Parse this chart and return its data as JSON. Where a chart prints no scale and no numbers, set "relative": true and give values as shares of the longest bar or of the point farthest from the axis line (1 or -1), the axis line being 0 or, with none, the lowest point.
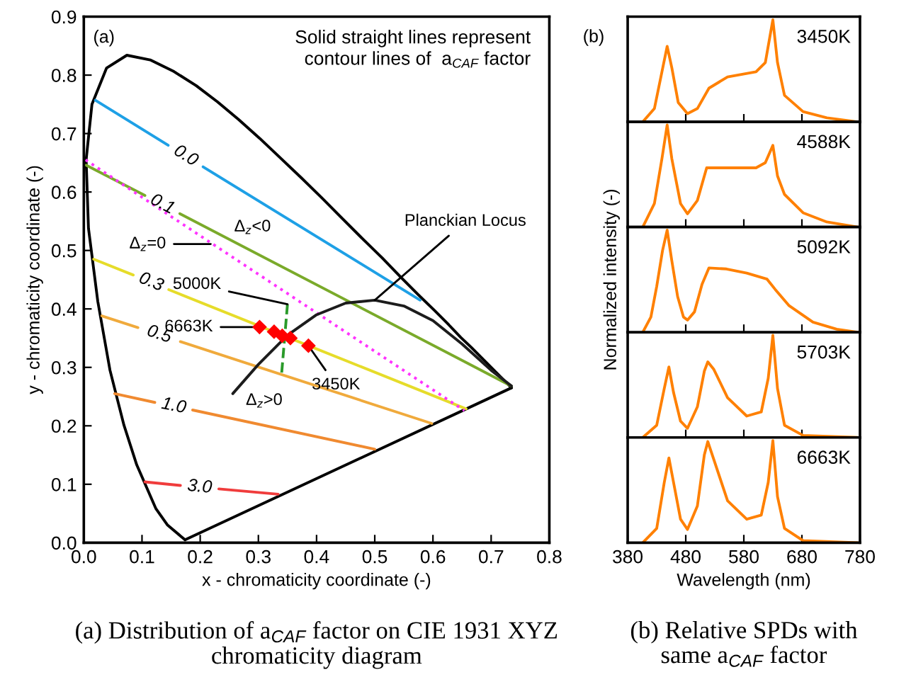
{
  "chart_data": [
    {
      "type": "line",
      "xlabel": "x - chromaticity coordinate (-)",
      "ylabel": "y - chromaticity coordinate (-)",
      "xlim": [
        0,
        0.8
      ],
      "ylim": [
        0,
        0.9
      ],
      "xticks": [
        {
          "value": 0,
          "label": "0.0"
        },
        0.1,
        0.2,
        0.3,
        0.4,
        0.5,
        0.6,
        0.7,
        0.8
      ],
      "yticks": [
        {
          "value": 0,
          "label": "0.0"
        },
        0.1,
        0.2,
        0.3,
        0.4,
        0.5,
        0.6,
        0.7,
        0.8,
        0.9
      ],
      "grid": false,
      "legend": false,
      "series": [
        {
          "color": "#000000",
          "x": [
            0.174,
            0.144,
            0.124,
            0.091,
            0.069,
            0.045,
            0.024,
            0.008,
            0.004,
            0.014,
            0.039,
            0.074,
            0.114,
            0.155,
            0.193,
            0.23,
            0.266,
            0.302,
            0.337,
            0.373,
            0.409,
            0.444,
            0.479,
            0.513,
            0.545,
            0.575,
            0.603,
            0.627,
            0.648,
            0.666,
            0.692,
            0.708,
            0.735
          ],
          "values": [
            0.005,
            0.03,
            0.058,
            0.133,
            0.201,
            0.295,
            0.413,
            0.538,
            0.655,
            0.75,
            0.812,
            0.834,
            0.826,
            0.806,
            0.782,
            0.754,
            0.724,
            0.692,
            0.659,
            0.625,
            0.59,
            0.555,
            0.52,
            0.487,
            0.454,
            0.424,
            0.397,
            0.373,
            0.351,
            0.334,
            0.308,
            0.292,
            0.265
          ]
        },
        {
          "color": "#000000",
          "x": [
            0.174,
            0.735
          ],
          "values": [
            0.005,
            0.265
          ]
        },
        {
          "name": "0.0",
          "color": "#1ea0e6",
          "x": [
            0.02,
            0.145,
            0.175,
            0.205,
            0.578
          ],
          "values": [
            0.757,
            0.68,
            null,
            0.643,
            0.415
          ]
        },
        {
          "name": "0.1",
          "color": "#7aaa2a",
          "x": [
            0.004,
            0.105,
            0.135,
            0.165,
            0.735
          ],
          "values": [
            0.646,
            0.594,
            null,
            0.563,
            0.268
          ]
        },
        {
          "name": "0.3",
          "color": "#e6dc2a",
          "x": [
            0.017,
            0.085,
            0.115,
            0.146,
            0.657
          ],
          "values": [
            0.485,
            0.458,
            null,
            0.433,
            0.229
          ]
        },
        {
          "name": "0.5",
          "color": "#f0aa3c",
          "x": [
            0.031,
            0.093,
            0.13,
            0.166,
            0.598
          ],
          "values": [
            0.388,
            0.368,
            null,
            0.344,
            0.204
          ]
        },
        {
          "name": "1.0",
          "color": "#f08a30",
          "x": [
            0.053,
            0.122,
            0.155,
            0.187,
            0.5
          ],
          "values": [
            0.255,
            0.24,
            null,
            0.227,
            0.16
          ]
        },
        {
          "name": "3.0",
          "color": "#f03c3c",
          "x": [
            0.105,
            0.166,
            0.2,
            0.232,
            0.334
          ],
          "values": [
            0.104,
            0.098,
            null,
            0.092,
            0.083
          ]
        },
        {
          "color": "#ff33ff",
          "line_style": "dotted",
          "x": [
            0.003,
            0.654
          ],
          "values": [
            0.655,
            0.226
          ]
        },
        {
          "color": "#1c1c1c",
          "x": [
            0.256,
            0.3,
            0.35,
            0.4,
            0.45,
            0.5,
            0.55,
            0.6,
            0.65,
            0.7,
            0.735
          ],
          "values": [
            0.255,
            0.305,
            0.355,
            0.39,
            0.41,
            0.415,
            0.405,
            0.38,
            0.34,
            0.295,
            0.268
          ]
        },
        {
          "color": "#2a9a2a",
          "line_style": "dashed",
          "x": [
            0.35,
            0.34
          ],
          "values": [
            0.408,
            0.29
          ]
        },
        {
          "type": "scatter",
          "marker": "diamond",
          "color": "#ff0000",
          "x": [
            0.302,
            0.327,
            0.341,
            0.355,
            0.386
          ],
          "values": [
            0.369,
            0.361,
            0.354,
            0.35,
            0.337
          ]
        }
      ],
      "annotations": [
        "(a)",
        "Solid straight lines represent\ncontour lines of  a$_{CAF}$ factor",
        "Δ$_{z}$<0",
        {
          "text": "Δ$_{z}$=0",
          "x": 0.218,
          "y": 0.511
        },
        "Δ$_{z}$>0",
        {
          "text": "5000K",
          "x": 0.35,
          "y": 0.408
        },
        {
          "text": "6663K",
          "x": 0.302,
          "y": 0.369
        },
        {
          "text": "3450K",
          "x": 0.386,
          "y": 0.337
        },
        {
          "text": "Planckian Locus",
          "x": 0.5,
          "y": 0.415
        },
        "(a) Distribution of a$_{CAF}$ factor on CIE 1931 XYZ\nchromaticity diagram"
      ]
    },
    {
      "type": "line",
      "relative": true,
      "xlim": [
        380,
        780
      ],
      "xticks": [
        380,
        480,
        580,
        680,
        780
      ],
      "tick_labels": false,
      "grid": false,
      "legend": false,
      "series": [
        {
          "name": "3450K",
          "color": "#ff8000",
          "x": [
            406,
            426,
            439,
            448,
            456,
            467,
            483,
            500,
            520,
            552,
            601,
            617,
            630,
            638,
            650,
            682,
            723,
            776
          ],
          "values": [
            0,
            0.13,
            0.49,
            0.74,
            0.53,
            0.19,
            0.08,
            0.13,
            0.33,
            0.44,
            0.49,
            0.58,
            1,
            0.58,
            0.26,
            0.1,
            0.04,
            0
          ]
        }
      ],
      "annotations": [
        "(b)",
        "(b) Relative SPDs with\nsame a$_{CAF}$ factor"
      ]
    },
    {
      "type": "line",
      "relative": true,
      "xlim": [
        380,
        780
      ],
      "xticks": [
        380,
        480,
        580,
        680,
        780
      ],
      "tick_labels": false,
      "grid": false,
      "legend": false,
      "series": [
        {
          "name": "4588K",
          "color": "#ff8000",
          "x": [
            406,
            426,
            439,
            448,
            456,
            471,
            483,
            500,
            516,
            544,
            601,
            617,
            630,
            638,
            650,
            682,
            723,
            776
          ],
          "values": [
            0,
            0.23,
            0.67,
            1,
            0.67,
            0.23,
            0.13,
            0.26,
            0.58,
            0.58,
            0.58,
            0.63,
            0.8,
            0.5,
            0.32,
            0.14,
            0.05,
            0
          ]
        }
      ]
    },
    {
      "type": "line",
      "relative": true,
      "xlim": [
        380,
        780
      ],
      "xticks": [
        380,
        480,
        580,
        680,
        780
      ],
      "tick_labels": false,
      "grid": false,
      "legend": false,
      "ylabel": "Normalized intensity (-)",
      "series": [
        {
          "name": "5092K",
          "color": "#ff8000",
          "x": [
            406,
            420,
            430,
            440,
            448,
            456,
            466,
            476,
            483,
            495,
            508,
            520,
            550,
            585,
            620,
            634,
            658,
            699,
            740,
            776
          ],
          "values": [
            0,
            0.15,
            0.45,
            0.8,
            1,
            0.7,
            0.35,
            0.15,
            0.12,
            0.2,
            0.47,
            0.63,
            0.62,
            0.58,
            0.52,
            0.42,
            0.26,
            0.1,
            0.03,
            0
          ]
        }
      ]
    },
    {
      "type": "line",
      "relative": true,
      "xlim": [
        380,
        780
      ],
      "xticks": [
        380,
        480,
        580,
        680,
        780
      ],
      "tick_labels": false,
      "grid": false,
      "legend": false,
      "series": [
        {
          "name": "5703K",
          "color": "#ff8000",
          "x": [
            406,
            430,
            443,
            451,
            459,
            471,
            483,
            500,
            512,
            518,
            528,
            552,
            585,
            610,
            622,
            630,
            638,
            650,
            682,
            776
          ],
          "values": [
            0,
            0.12,
            0.48,
            0.69,
            0.44,
            0.16,
            0.09,
            0.3,
            0.65,
            0.74,
            0.67,
            0.39,
            0.21,
            0.25,
            0.58,
            1,
            0.48,
            0.12,
            0.02,
            0
          ]
        }
      ]
    },
    {
      "type": "line",
      "relative": true,
      "xlim": [
        380,
        780
      ],
      "xticks": [
        380,
        480,
        580,
        680,
        780
      ],
      "tick_labels": "x",
      "grid": false,
      "legend": false,
      "xlabel": "Wavelength (nm)",
      "series": [
        {
          "name": "6663K",
          "color": "#ff8000",
          "x": [
            406,
            430,
            443,
            451,
            459,
            471,
            483,
            500,
            512,
            518,
            528,
            552,
            585,
            610,
            622,
            630,
            638,
            650,
            682,
            776
          ],
          "values": [
            0,
            0.14,
            0.59,
            0.83,
            0.59,
            0.23,
            0.13,
            0.36,
            0.86,
            0.99,
            0.82,
            0.41,
            0.23,
            0.27,
            0.59,
            1,
            0.45,
            0.14,
            0.02,
            0
          ]
        }
      ]
    }
  ]
}
